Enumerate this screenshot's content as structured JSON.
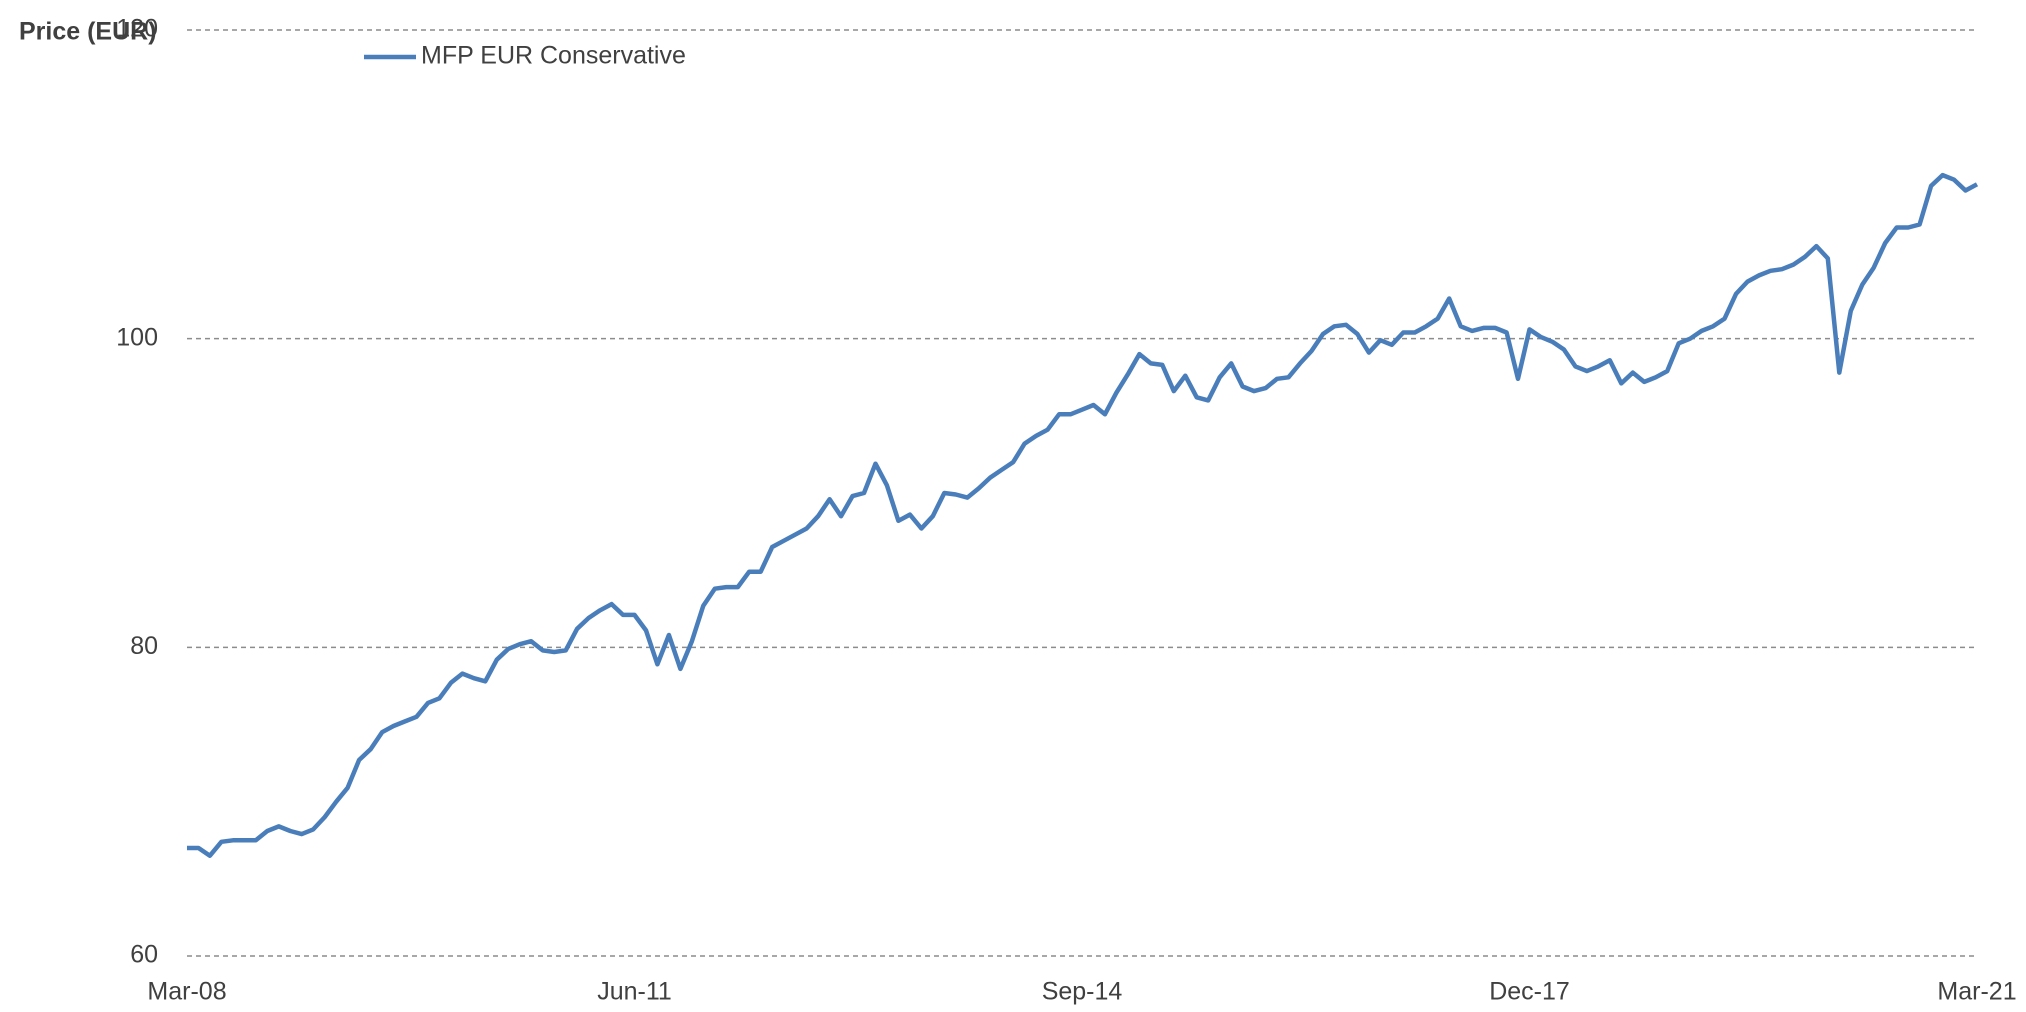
{
  "chart_data": {
    "type": "line",
    "y_label": "Price (EUR)",
    "categories": [
      "Mar-08",
      null,
      null,
      null,
      null,
      null,
      null,
      null,
      null,
      null,
      null,
      null,
      null,
      null,
      null,
      null,
      null,
      null,
      null,
      null,
      null,
      null,
      null,
      null,
      null,
      null,
      null,
      null,
      null,
      null,
      null,
      null,
      null,
      null,
      null,
      null,
      null,
      null,
      null,
      "Jun-11",
      null,
      null,
      null,
      null,
      null,
      null,
      null,
      null,
      null,
      null,
      null,
      null,
      null,
      null,
      null,
      null,
      null,
      null,
      null,
      null,
      null,
      null,
      null,
      null,
      null,
      null,
      null,
      null,
      null,
      null,
      null,
      null,
      null,
      null,
      null,
      null,
      null,
      null,
      "Sep-14",
      null,
      null,
      null,
      null,
      null,
      null,
      null,
      null,
      null,
      null,
      null,
      null,
      null,
      null,
      null,
      null,
      null,
      null,
      null,
      null,
      null,
      null,
      null,
      null,
      null,
      null,
      null,
      null,
      null,
      null,
      null,
      null,
      null,
      null,
      null,
      null,
      null,
      null,
      "Dec-17",
      null,
      null,
      null,
      null,
      null,
      null,
      null,
      null,
      null,
      null,
      null,
      null,
      null,
      null,
      null,
      null,
      null,
      null,
      null,
      null,
      null,
      null,
      null,
      null,
      null,
      null,
      null,
      null,
      null,
      null,
      null,
      null,
      null,
      null,
      null,
      null,
      null,
      null,
      "Mar-21"
    ],
    "series": [
      {
        "name": "MFP EUR Conservative",
        "color": "#4a7ebb",
        "values": [
          67.0,
          67.0,
          66.5,
          67.4,
          67.5,
          67.5,
          67.5,
          68.1,
          68.4,
          68.1,
          67.9,
          68.2,
          69.0,
          70.0,
          70.9,
          72.7,
          73.4,
          74.5,
          74.9,
          75.2,
          75.5,
          76.4,
          76.7,
          77.7,
          78.3,
          78.0,
          77.8,
          79.2,
          79.9,
          80.2,
          80.4,
          79.8,
          79.7,
          79.8,
          81.2,
          81.9,
          82.4,
          82.8,
          82.1,
          82.1,
          81.1,
          78.9,
          80.8,
          78.6,
          80.4,
          82.7,
          83.8,
          83.9,
          83.9,
          84.9,
          84.9,
          86.5,
          86.9,
          87.3,
          87.7,
          88.5,
          89.6,
          88.5,
          89.8,
          90.0,
          91.9,
          90.5,
          88.2,
          88.6,
          87.7,
          88.5,
          90.0,
          89.9,
          89.7,
          90.3,
          91.0,
          91.5,
          92.0,
          93.2,
          93.7,
          94.1,
          95.1,
          95.1,
          95.4,
          95.7,
          95.1,
          96.5,
          97.7,
          99.0,
          98.4,
          98.3,
          96.6,
          97.6,
          96.2,
          96.0,
          97.5,
          98.4,
          96.9,
          96.6,
          96.8,
          97.4,
          97.5,
          98.4,
          99.2,
          100.3,
          100.8,
          100.9,
          100.3,
          99.1,
          99.9,
          99.6,
          100.4,
          100.4,
          100.8,
          101.3,
          102.6,
          100.8,
          100.5,
          100.7,
          100.7,
          100.4,
          97.4,
          100.6,
          100.1,
          99.8,
          99.3,
          98.2,
          97.9,
          98.2,
          98.6,
          97.1,
          97.8,
          97.2,
          97.5,
          97.9,
          99.7,
          100.0,
          100.5,
          100.8,
          101.3,
          102.9,
          103.7,
          104.1,
          104.4,
          104.5,
          104.8,
          105.3,
          106.0,
          105.2,
          97.8,
          101.8,
          103.5,
          104.6,
          106.2,
          107.2,
          107.2,
          107.4,
          109.9,
          110.6,
          110.3,
          109.6,
          110.0
        ]
      }
    ],
    "ylim": [
      60,
      120
    ],
    "yticks": [
      60,
      80,
      100,
      120
    ],
    "grid": true,
    "legend": "top-left"
  }
}
